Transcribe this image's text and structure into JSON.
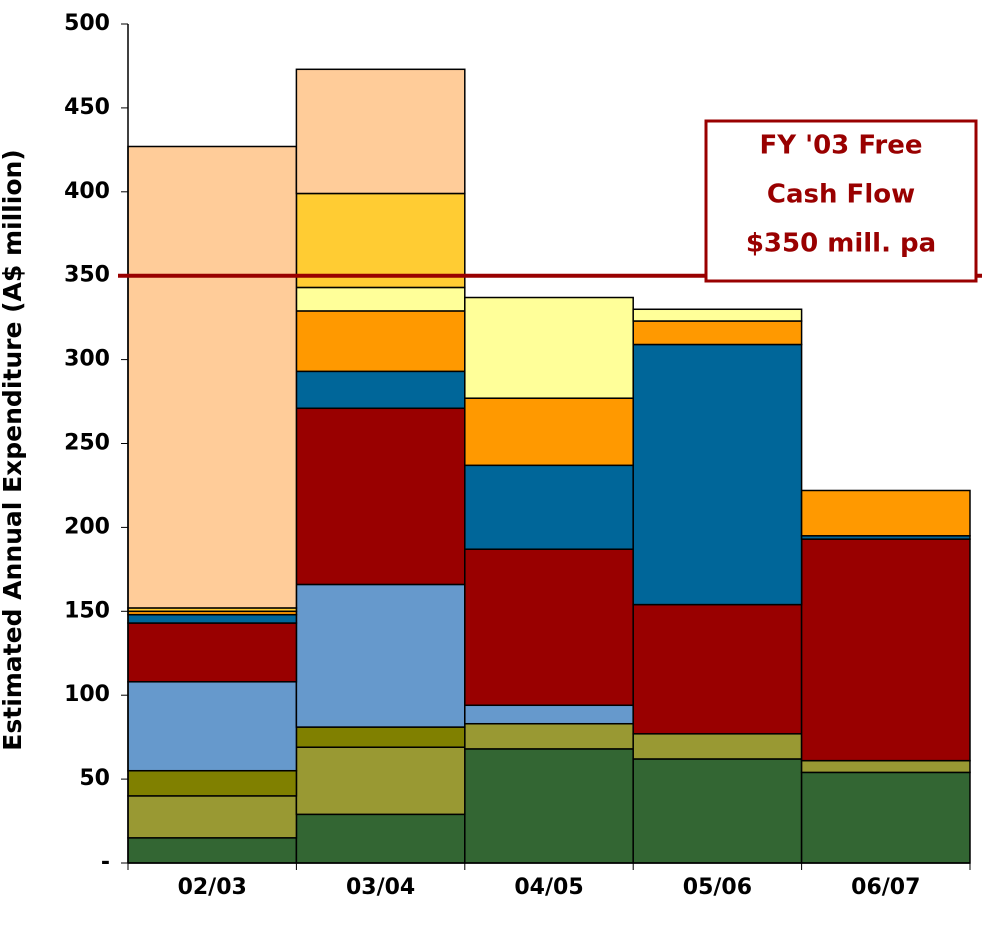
{
  "chart_data": {
    "type": "stacked-bar",
    "y_label": "Estimated Annual Expenditure (A$ million)",
    "categories": [
      "02/03",
      "03/04",
      "04/05",
      "05/06",
      "06/07"
    ],
    "series": [
      {
        "color": "#336633",
        "values": [
          15,
          29,
          68,
          62,
          54
        ]
      },
      {
        "color": "#999933",
        "values": [
          25,
          40,
          15,
          15,
          7
        ]
      },
      {
        "color": "#808000",
        "values": [
          15,
          12,
          0,
          0,
          0
        ]
      },
      {
        "color": "#6699cc",
        "values": [
          53,
          85,
          11,
          0,
          0
        ]
      },
      {
        "color": "#990000",
        "values": [
          35,
          105,
          93,
          77,
          132
        ]
      },
      {
        "color": "#006699",
        "values": [
          5,
          22,
          50,
          155,
          2
        ]
      },
      {
        "color": "#ff9900",
        "values": [
          2,
          36,
          40,
          14,
          27
        ]
      },
      {
        "color": "#ffff99",
        "values": [
          0,
          14,
          60,
          7,
          0
        ]
      },
      {
        "color": "#ffcc33",
        "values": [
          2,
          56,
          0,
          0,
          0
        ]
      },
      {
        "color": "#ffcc99",
        "values": [
          275,
          74,
          0,
          0,
          0
        ]
      }
    ],
    "ylim": [
      0,
      500
    ],
    "yticks": [
      {
        "value": 0,
        "label": "-"
      },
      50,
      100,
      150,
      200,
      250,
      300,
      350,
      400,
      450,
      500
    ],
    "reference_line": {
      "value": 350,
      "color": "#990000"
    },
    "annotation": {
      "lines": [
        "FY '03 Free",
        "Cash Flow",
        "$350 mill. pa"
      ],
      "color": "#990000"
    }
  }
}
